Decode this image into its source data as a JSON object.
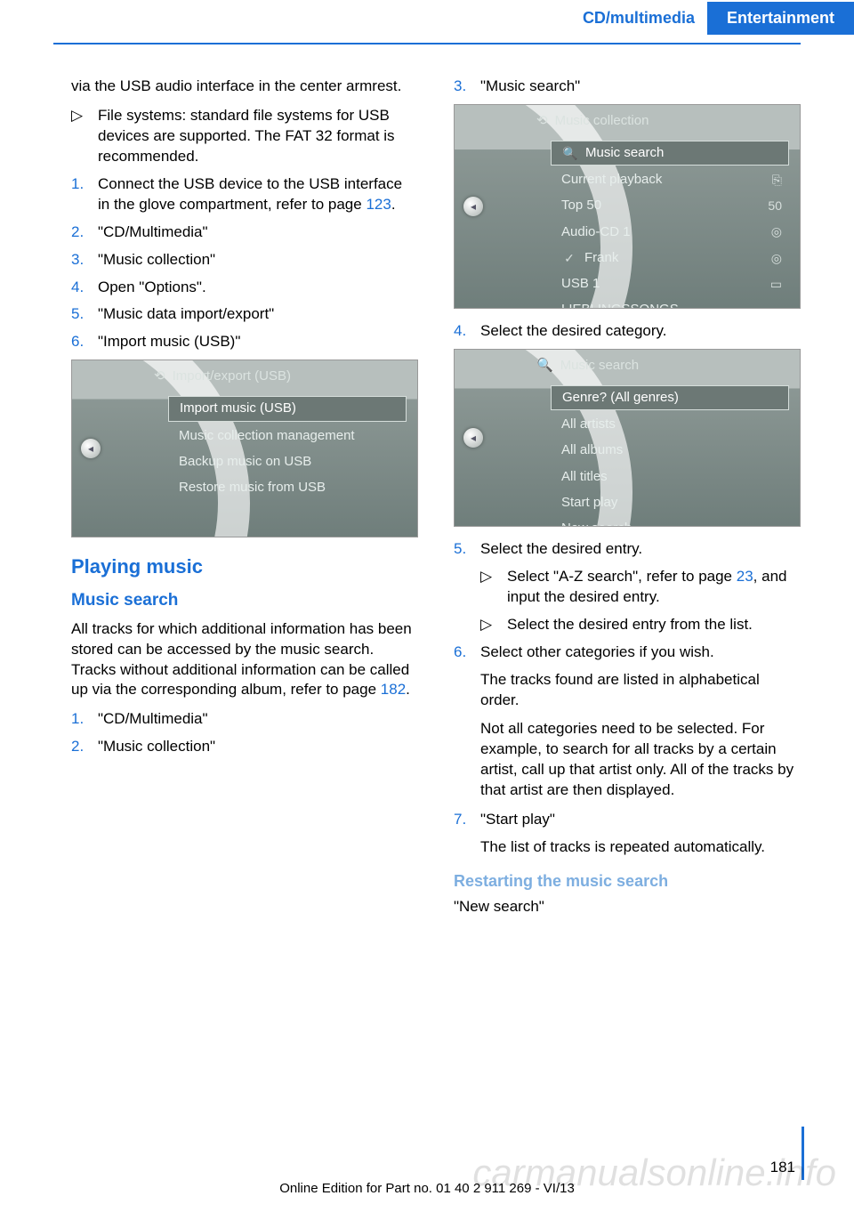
{
  "header": {
    "section": "CD/multimedia",
    "chapter": "Entertainment"
  },
  "colors": {
    "brand": "#1a6fd6",
    "link": "#1a6fd6",
    "subhead": "#7daee0"
  },
  "left": {
    "intro": "via the USB audio interface in the center armrest.",
    "fs_bullet": "▷",
    "fs": "File systems: standard file systems for USB devices are supported. The FAT 32 format is recommended.",
    "s1n": "1.",
    "s1a": "Connect the USB device to the USB interface in the glove compartment, refer to page ",
    "s1link": "123",
    "s1b": ".",
    "s2n": "2.",
    "s2": "\"CD/Multimedia\"",
    "s3n": "3.",
    "s3": "\"Music collection\"",
    "s4n": "4.",
    "s4": "Open \"Options\".",
    "s5n": "5.",
    "s5": "\"Music data import/export\"",
    "s6n": "6.",
    "s6": "\"Import music (USB)\"",
    "screen1": {
      "title": "Import/export (USB)",
      "items": [
        {
          "label": "Import music (USB)",
          "sel": true
        },
        {
          "label": "Music collection management"
        },
        {
          "label": "Backup music on USB"
        },
        {
          "label": "Restore music from USB"
        }
      ]
    },
    "h2": "Playing music",
    "h3": "Music search",
    "para_a": "All tracks for which additional information has been stored can be accessed by the music search. Tracks without additional information can be called up via the corresponding album, refer to page ",
    "para_link": "182",
    "para_b": ".",
    "p1n": "1.",
    "p1": "\"CD/Multimedia\"",
    "p2n": "2.",
    "p2": "\"Music collection\""
  },
  "right": {
    "s3n": "3.",
    "s3": "\"Music search\"",
    "screen2": {
      "title": "Music collection",
      "items": [
        {
          "lead": "🔍",
          "label": "Music search",
          "sel": true
        },
        {
          "label": "Current playback",
          "tail": "⎘"
        },
        {
          "label": "Top 50",
          "tail": "50"
        },
        {
          "label": "Audio-CD 1",
          "tail": "◎"
        },
        {
          "lead": "✓",
          "label": "Frank",
          "tail": "◎"
        },
        {
          "label": "USB 1",
          "tail": "▭"
        },
        {
          "label": "LIEBLINGSSONGS",
          "tail": "▭"
        }
      ]
    },
    "s4n": "4.",
    "s4": "Select the desired category.",
    "screen3": {
      "title": "Music search",
      "items": [
        {
          "label": "Genre? (All genres)",
          "sel": true
        },
        {
          "label": "All artists"
        },
        {
          "label": "All albums"
        },
        {
          "label": "All titles"
        },
        {
          "label": "Start play"
        },
        {
          "label": "New search"
        }
      ]
    },
    "s5n": "5.",
    "s5": "Select the desired entry.",
    "s5b1_bullet": "▷",
    "s5b1a": "Select \"A-Z search\", refer to page ",
    "s5b1link": "23",
    "s5b1b": ", and input the desired entry.",
    "s5b2_bullet": "▷",
    "s5b2": "Select the desired entry from the list.",
    "s6n": "6.",
    "s6": "Select other categories if you wish.",
    "s6p1": "The tracks found are listed in alphabetical order.",
    "s6p2": "Not all categories need to be selected. For example, to search for all tracks by a certain artist, call up that artist only. All of the tracks by that artist are then displayed.",
    "s7n": "7.",
    "s7": "\"Start play\"",
    "s7p": "The list of tracks is repeated automatically.",
    "h4": "Restarting the music search",
    "h4p": "\"New search\""
  },
  "footer": {
    "page": "181",
    "line": "Online Edition for Part no. 01 40 2 911 269 - VI/13"
  },
  "watermark": "carmanualsonline.info"
}
